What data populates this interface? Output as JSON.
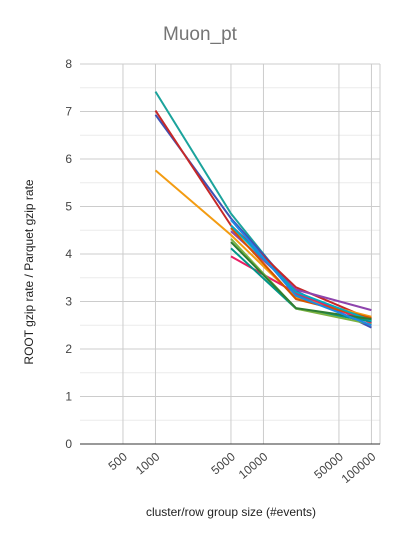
{
  "chart_data": {
    "type": "line",
    "title": "Muon_pt",
    "xlabel": "cluster/row group size (#events)",
    "ylabel": "ROOT gzip rate / Parquet gzip rate",
    "x_scale": "log",
    "xlim": [
      200,
      120000
    ],
    "ylim": [
      0,
      8
    ],
    "yticks": [
      0,
      1,
      2,
      3,
      4,
      5,
      6,
      7,
      8
    ],
    "xticks": [
      500,
      1000,
      5000,
      10000,
      50000,
      100000
    ],
    "xtick_labels": [
      "500",
      "1000",
      "5000",
      "10000",
      "50000",
      "100000"
    ],
    "grid": true,
    "legend": "none",
    "x": [
      1000,
      5000,
      20000,
      100000
    ],
    "series": [
      {
        "color": "#1ba39c",
        "values": [
          7.42,
          4.85,
          3.15,
          2.58
        ]
      },
      {
        "color": "#3f51b5",
        "values": [
          6.93,
          4.75,
          3.22,
          2.45
        ]
      },
      {
        "color": "#c62828",
        "values": [
          7.02,
          4.6,
          3.3,
          2.62
        ]
      },
      {
        "color": "#f39c12",
        "values": [
          5.76,
          4.4,
          3.08,
          2.68
        ]
      },
      {
        "color": "#e91e63",
        "values": [
          null,
          3.95,
          3.18,
          2.55
        ]
      },
      {
        "color": "#009688",
        "values": [
          null,
          4.12,
          2.85,
          2.58
        ]
      },
      {
        "color": "#8e44ad",
        "values": [
          null,
          4.48,
          3.25,
          2.82
        ]
      },
      {
        "color": "#7cb342",
        "values": [
          null,
          4.32,
          2.85,
          2.52
        ]
      },
      {
        "color": "#d35400",
        "values": [
          null,
          4.55,
          3.05,
          2.65
        ]
      },
      {
        "color": "#00acc1",
        "values": [
          null,
          4.6,
          3.2,
          2.6
        ]
      },
      {
        "color": "#2e7d32",
        "values": [
          null,
          4.25,
          2.86,
          2.63
        ]
      },
      {
        "color": "#1e88e5",
        "values": [
          null,
          4.72,
          3.12,
          2.5
        ]
      }
    ]
  }
}
